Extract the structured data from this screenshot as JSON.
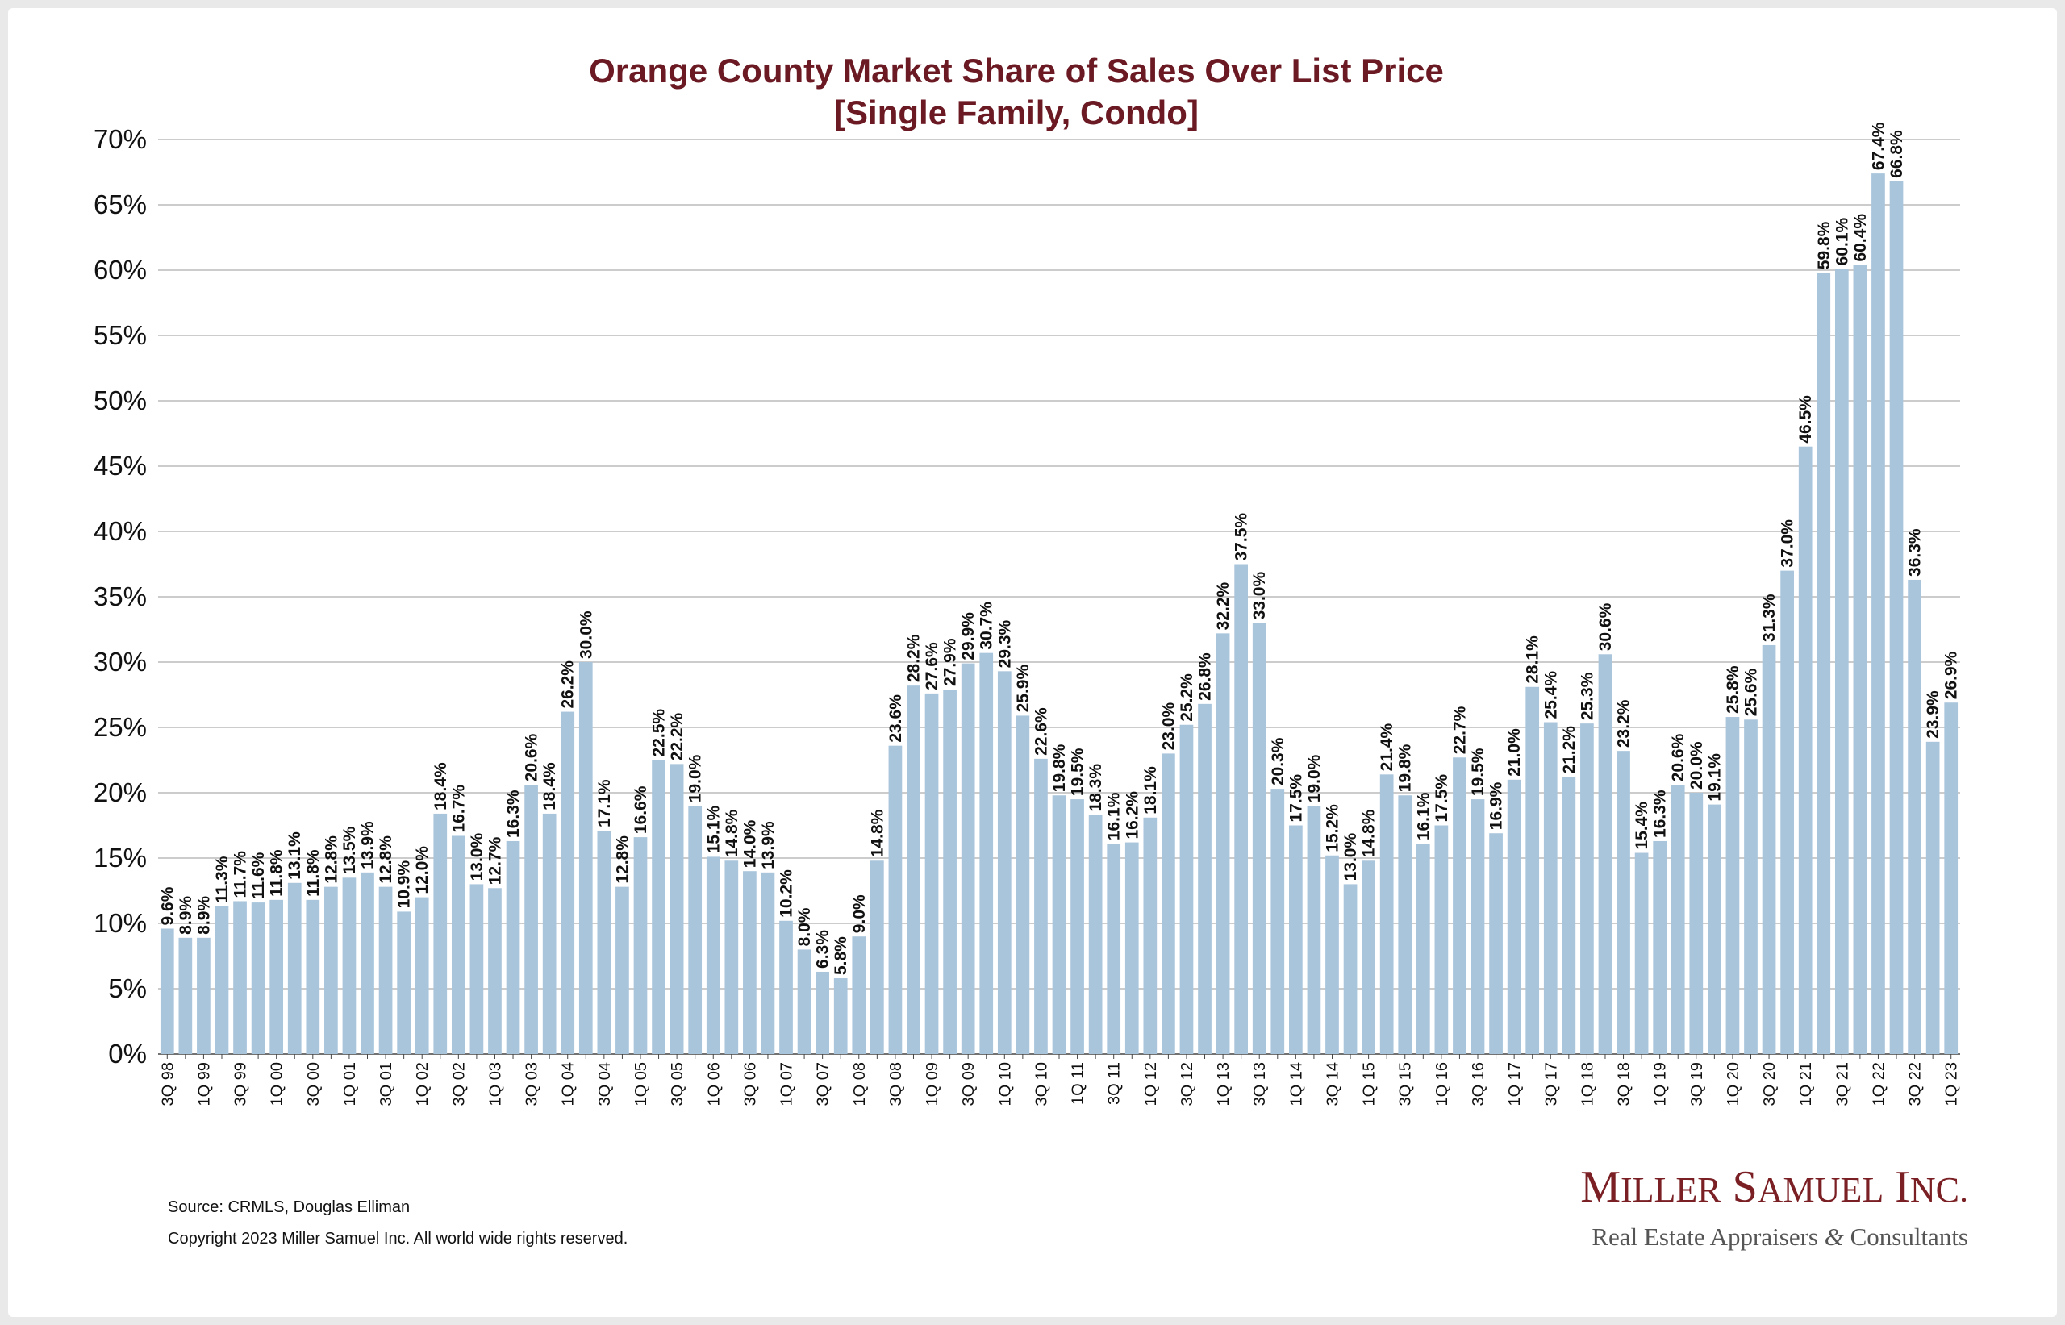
{
  "chart_data": {
    "type": "bar",
    "title": "Orange County Market Share of Sales Over List Price",
    "subtitle": "[Single Family, Condo]",
    "ylim": [
      0,
      70
    ],
    "ytick_labels": [
      "0%",
      "5%",
      "10%",
      "15%",
      "20%",
      "25%",
      "30%",
      "35%",
      "40%",
      "45%",
      "50%",
      "55%",
      "60%",
      "65%",
      "70%"
    ],
    "grid": true,
    "bar_color": "#a9c5dc",
    "title_color": "#6b1a24",
    "categories": [
      "3Q 98",
      "4Q 98",
      "1Q 99",
      "2Q 99",
      "3Q 99",
      "4Q 99",
      "1Q 00",
      "2Q 00",
      "3Q 00",
      "4Q 00",
      "1Q 01",
      "2Q 01",
      "3Q 01",
      "4Q 01",
      "1Q 02",
      "2Q 02",
      "3Q 02",
      "4Q 02",
      "1Q 03",
      "2Q 03",
      "3Q 03",
      "4Q 03",
      "1Q 04",
      "2Q 04",
      "3Q 04",
      "4Q 04",
      "1Q 05",
      "2Q 05",
      "3Q 05",
      "4Q 05",
      "1Q 06",
      "2Q 06",
      "3Q 06",
      "4Q 06",
      "1Q 07",
      "2Q 07",
      "3Q 07",
      "4Q 07",
      "1Q 08",
      "2Q 08",
      "3Q 08",
      "4Q 08",
      "1Q 09",
      "2Q 09",
      "3Q 09",
      "4Q 09",
      "1Q 10",
      "2Q 10",
      "3Q 10",
      "4Q 10",
      "1Q 11",
      "2Q 11",
      "3Q 11",
      "4Q 11",
      "1Q 12",
      "2Q 12",
      "3Q 12",
      "4Q 12",
      "1Q 13",
      "2Q 13",
      "3Q 13",
      "4Q 13",
      "1Q 14",
      "2Q 14",
      "3Q 14",
      "4Q 14",
      "1Q 15",
      "2Q 15",
      "3Q 15",
      "4Q 15",
      "1Q 16",
      "2Q 16",
      "3Q 16",
      "4Q 16",
      "1Q 17",
      "2Q 17",
      "3Q 17",
      "4Q 17",
      "1Q 18",
      "2Q 18",
      "3Q 18",
      "4Q 18",
      "1Q 19",
      "2Q 19",
      "3Q 19",
      "4Q 19",
      "1Q 20",
      "2Q 20",
      "3Q 20",
      "4Q 20",
      "1Q 21",
      "2Q 21",
      "3Q 21",
      "4Q 21",
      "1Q 22",
      "2Q 22",
      "3Q 22",
      "4Q 22",
      "1Q 23"
    ],
    "visible_category_labels": [
      "3Q 98",
      "1Q 99",
      "3Q 99",
      "1Q 00",
      "3Q 00",
      "1Q 01",
      "3Q 01",
      "1Q 02",
      "3Q 02",
      "1Q 03",
      "3Q 03",
      "1Q 04",
      "3Q 04",
      "1Q 05",
      "3Q 05",
      "1Q 06",
      "3Q 06",
      "1Q 07",
      "3Q 07",
      "1Q 08",
      "3Q 08",
      "1Q 09",
      "3Q 09",
      "1Q 10",
      "3Q 10",
      "1Q 11",
      "3Q 11",
      "1Q 12",
      "3Q 12",
      "1Q 13",
      "3Q 13",
      "1Q 14",
      "3Q 14",
      "1Q 15",
      "3Q 15",
      "1Q 16",
      "3Q 16",
      "1Q 17",
      "3Q 17",
      "1Q 18",
      "3Q 18",
      "1Q 19",
      "3Q 19",
      "1Q 20",
      "3Q 20",
      "1Q 21",
      "3Q 21",
      "1Q 22",
      "3Q 22",
      "1Q 23"
    ],
    "values": [
      9.6,
      8.9,
      8.9,
      11.3,
      11.7,
      11.6,
      11.8,
      13.1,
      11.8,
      12.8,
      13.5,
      13.9,
      12.8,
      10.9,
      12.0,
      18.4,
      16.7,
      13.0,
      12.7,
      16.3,
      20.6,
      18.4,
      26.2,
      30.0,
      17.1,
      12.8,
      16.6,
      22.5,
      22.2,
      19.0,
      15.1,
      14.8,
      14.0,
      13.9,
      10.2,
      8.0,
      6.3,
      5.8,
      9.0,
      14.8,
      23.6,
      28.2,
      27.6,
      27.9,
      29.9,
      30.7,
      29.3,
      25.9,
      22.6,
      19.8,
      19.5,
      18.3,
      16.1,
      16.2,
      18.1,
      23.0,
      25.2,
      26.8,
      32.2,
      37.5,
      33.0,
      20.3,
      17.5,
      19.0,
      15.2,
      13.0,
      14.8,
      21.4,
      19.8,
      16.1,
      17.5,
      22.7,
      19.5,
      16.9,
      21.0,
      28.1,
      25.4,
      21.2,
      25.3,
      30.6,
      23.2,
      15.4,
      16.3,
      20.6,
      20.0,
      19.1,
      25.8,
      25.6,
      31.3,
      37.0,
      46.5,
      59.8,
      60.1,
      60.4,
      67.4,
      66.8,
      36.3,
      23.9,
      26.9
    ],
    "data_labels": [
      "9.6%",
      "8.9%",
      "8.9%",
      "11.3%",
      "11.7%",
      "11.6%",
      "11.8%",
      "13.1%",
      "11.8%",
      "12.8%",
      "13.5%",
      "13.9%",
      "12.8%",
      "10.9%",
      "12.0%",
      "18.4%",
      "16.7%",
      "13.0%",
      "12.7%",
      "16.3%",
      "20.6%",
      "18.4%",
      "26.2%",
      "30.0%",
      "17.1%",
      "12.8%",
      "16.6%",
      "22.5%",
      "22.2%",
      "19.0%",
      "15.1%",
      "14.8%",
      "14.0%",
      "13.9%",
      "10.2%",
      "8.0%",
      "6.3%",
      "5.8%",
      "9.0%",
      "14.8%",
      "23.6%",
      "28.2%",
      "27.6%",
      "27.9%",
      "29.9%",
      "30.7%",
      "29.3%",
      "25.9%",
      "22.6%",
      "19.8%",
      "19.5%",
      "18.3%",
      "16.1%",
      "16.2%",
      "18.1%",
      "23.0%",
      "25.2%",
      "26.8%",
      "32.2%",
      "37.5%",
      "33.0%",
      "20.3%",
      "17.5%",
      "19.0%",
      "15.2%",
      "13.0%",
      "14.8%",
      "21.4%",
      "19.8%",
      "16.1%",
      "17.5%",
      "22.7%",
      "19.5%",
      "16.9%",
      "21.0%",
      "28.1%",
      "25.4%",
      "21.2%",
      "25.3%",
      "30.6%",
      "23.2%",
      "15.4%",
      "16.3%",
      "20.6%",
      "20.0%",
      "19.1%",
      "25.8%",
      "25.6%",
      "31.3%",
      "37.0%",
      "46.5%",
      "59.8%",
      "60.1%",
      "60.4%",
      "67.4%",
      "66.8%",
      "36.3%",
      "23.9%",
      "26.9%"
    ]
  },
  "footer": {
    "source": "Source: CRMLS, Douglas Elliman",
    "copyright": "Copyright 2023 Miller Samuel Inc.  All world wide rights reserved."
  },
  "logo": {
    "name": "Miller Samuel Inc.",
    "tagline": "Real Estate Appraisers & Consultants"
  }
}
